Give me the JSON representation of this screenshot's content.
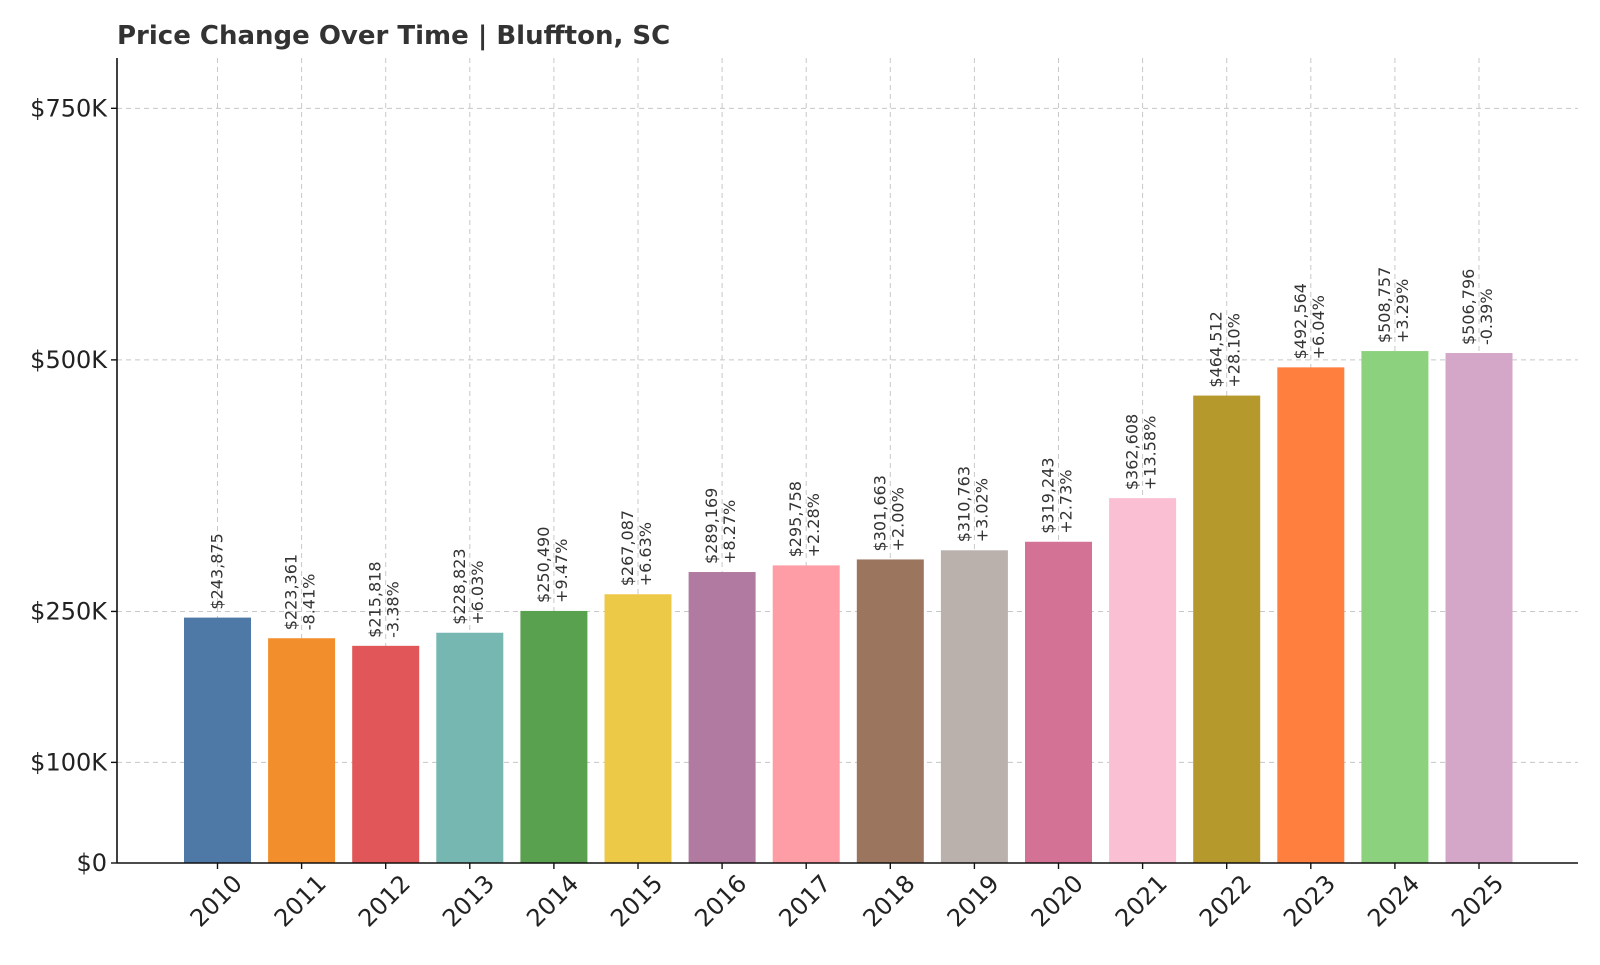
{
  "chart_data": {
    "type": "bar",
    "title": "Price Change Over Time | Bluffton, SC",
    "xlabel": "",
    "ylabel": "",
    "ylim": [
      0,
      800000
    ],
    "yticks": [
      {
        "value": 0,
        "label": "$0"
      },
      {
        "value": 100000,
        "label": "$100K"
      },
      {
        "value": 250000,
        "label": "$250K"
      },
      {
        "value": 500000,
        "label": "$500K"
      },
      {
        "value": 750000,
        "label": "$750K"
      }
    ],
    "grid": true,
    "legend": "none",
    "categories": [
      "2010",
      "2011",
      "2012",
      "2013",
      "2014",
      "2015",
      "2016",
      "2017",
      "2018",
      "2019",
      "2020",
      "2021",
      "2022",
      "2023",
      "2024",
      "2025"
    ],
    "values": [
      243875,
      223361,
      215818,
      228823,
      250490,
      267087,
      289169,
      295758,
      301663,
      310763,
      319243,
      362608,
      464512,
      492564,
      508757,
      506796
    ],
    "value_labels": [
      "$243,875",
      "$223,361",
      "$215,818",
      "$228,823",
      "$250,490",
      "$267,087",
      "$289,169",
      "$295,758",
      "$301,663",
      "$310,763",
      "$319,243",
      "$362,608",
      "$464,512",
      "$492,564",
      "$508,757",
      "$506,796"
    ],
    "change_labels": [
      "",
      "-8.41%",
      "-3.38%",
      "+6.03%",
      "+9.47%",
      "+6.63%",
      "+8.27%",
      "+2.28%",
      "+2.00%",
      "+3.02%",
      "+2.73%",
      "+13.58%",
      "+28.10%",
      "+6.04%",
      "+3.29%",
      "-0.39%"
    ],
    "colors": [
      "#4e79a7",
      "#f28e2b",
      "#e15759",
      "#76b7b2",
      "#59a14f",
      "#edc948",
      "#b07aa1",
      "#ff9da7",
      "#9c755f",
      "#bab0ac",
      "#d37295",
      "#fabfd2",
      "#b6992d",
      "#ff7f3f",
      "#8cd17d",
      "#d4a6c8"
    ]
  }
}
